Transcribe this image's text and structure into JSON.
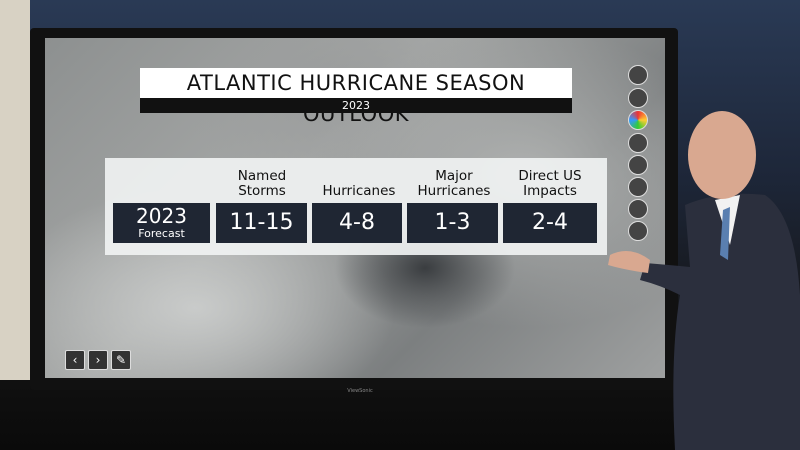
{
  "header": {
    "title": "ATLANTIC HURRICANE SEASON OUTLOOK",
    "subtitle": "2023"
  },
  "table": {
    "columns": [
      "Named Storms",
      "Hurricanes",
      "Major Hurricanes",
      "Direct US Impacts"
    ],
    "row_label": {
      "year": "2023",
      "label": "Forecast"
    },
    "values": [
      "11-15",
      "4-8",
      "1-3",
      "2-4"
    ]
  },
  "bezel_brand": "ViewSonic"
}
